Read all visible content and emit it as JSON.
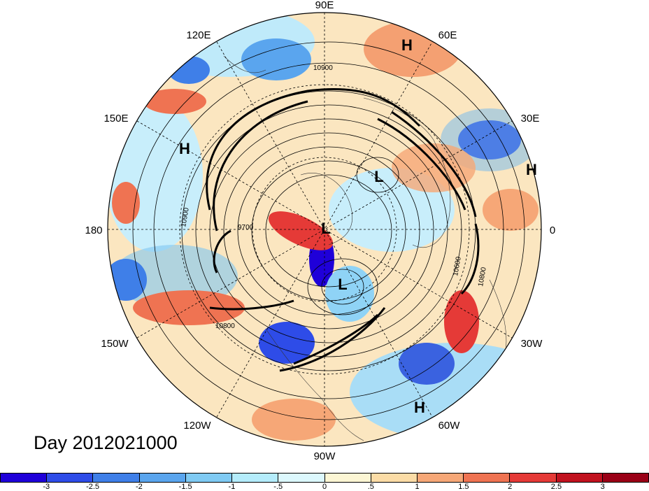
{
  "title": "Day 2012021000",
  "longitude_labels": {
    "lon_90e": "90E",
    "lon_60e": "60E",
    "lon_30e": "30E",
    "lon_0": "0",
    "lon_30w": "30W",
    "lon_60w": "60W",
    "lon_90w": "90W",
    "lon_120w": "120W",
    "lon_150w": "150W",
    "lon_180": "180",
    "lon_150e": "150E",
    "lon_120e": "120E"
  },
  "pressure_centers": {
    "h1": "H",
    "h2": "H",
    "h3": "H",
    "h4": "H",
    "l1": "L",
    "l2": "L",
    "l3": "L"
  },
  "contour_labels": {
    "c10900a": "10900",
    "c10900b": "10900",
    "c10800": "10800",
    "c9700": "9700",
    "c10600": "10600",
    "c10800b": "10800"
  },
  "colorbar": {
    "ticks": [
      "-3",
      "-2.5",
      "-2",
      "-1.5",
      "-1",
      "-.5",
      "0",
      ".5",
      "1",
      "1.5",
      "2",
      "2.5",
      "3"
    ],
    "colors": [
      "#1f00d9",
      "#2e4ce8",
      "#3f7fe8",
      "#5aa5ee",
      "#7fcaf3",
      "#b4ecfb",
      "#dcf8fd",
      "#fcf6d4",
      "#fbdca6",
      "#f6a777",
      "#ef7352",
      "#e53a37",
      "#c1121f",
      "#9a0016"
    ]
  }
}
